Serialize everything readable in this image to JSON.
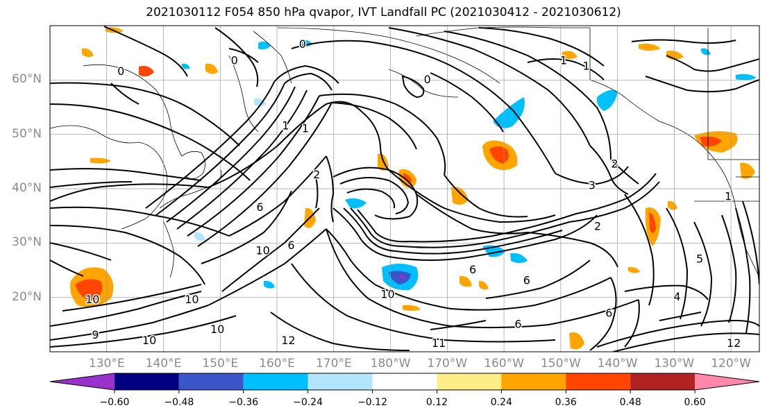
{
  "title": "2021030112 F054 850 hPa qvapor, IVT Landfall PC (2021030412 - 2021030612)",
  "map": {
    "extent": {
      "lon_min": 120,
      "lon_max": 245,
      "lat_min": 10,
      "lat_max": 70
    },
    "lat_labels": [
      {
        "lat": 60,
        "text": "60°N"
      },
      {
        "lat": 50,
        "text": "50°N"
      },
      {
        "lat": 40,
        "text": "40°N"
      },
      {
        "lat": 30,
        "text": "30°N"
      },
      {
        "lat": 20,
        "text": "20°N"
      }
    ],
    "lon_labels": [
      {
        "lon": 130,
        "text": "130°E"
      },
      {
        "lon": 140,
        "text": "140°E"
      },
      {
        "lon": 150,
        "text": "150°E"
      },
      {
        "lon": 160,
        "text": "160°E"
      },
      {
        "lon": 170,
        "text": "170°E"
      },
      {
        "lon": 180,
        "text": "180°W"
      },
      {
        "lon": 190,
        "text": "170°W"
      },
      {
        "lon": 200,
        "text": "160°W"
      },
      {
        "lon": 210,
        "text": "150°W"
      },
      {
        "lon": 220,
        "text": "140°W"
      },
      {
        "lon": 230,
        "text": "130°W"
      },
      {
        "lon": 240,
        "text": "120°W"
      }
    ],
    "contour_labels": [
      {
        "text": "0",
        "lon": 132.5,
        "lat": 61.5
      },
      {
        "text": "0",
        "lon": 152.5,
        "lat": 63.5
      },
      {
        "text": "0",
        "lon": 164.5,
        "lat": 66.5
      },
      {
        "text": "1",
        "lon": 210.5,
        "lat": 63.5
      },
      {
        "text": "1",
        "lon": 214.5,
        "lat": 62.5
      },
      {
        "text": "0",
        "lon": 186.5,
        "lat": 60.0
      },
      {
        "text": "1",
        "lon": 161.5,
        "lat": 51.5
      },
      {
        "text": "1",
        "lon": 165.0,
        "lat": 51.0
      },
      {
        "text": "2",
        "lon": 167.0,
        "lat": 42.5
      },
      {
        "text": "2",
        "lon": 219.5,
        "lat": 44.5
      },
      {
        "text": "3",
        "lon": 215.5,
        "lat": 40.5
      },
      {
        "text": "6",
        "lon": 157.0,
        "lat": 36.5
      },
      {
        "text": "10",
        "lon": 157.5,
        "lat": 28.5
      },
      {
        "text": "6",
        "lon": 162.5,
        "lat": 29.5
      },
      {
        "text": "10",
        "lon": 179.5,
        "lat": 20.5
      },
      {
        "text": "6",
        "lon": 194.5,
        "lat": 25.0
      },
      {
        "text": "6",
        "lon": 204.0,
        "lat": 23.0
      },
      {
        "text": "6",
        "lon": 202.5,
        "lat": 15.0
      },
      {
        "text": "10",
        "lon": 127.5,
        "lat": 19.5
      },
      {
        "text": "10",
        "lon": 145.0,
        "lat": 19.5
      },
      {
        "text": "10",
        "lon": 149.5,
        "lat": 14.0
      },
      {
        "text": "12",
        "lon": 162.0,
        "lat": 12.0
      },
      {
        "text": "11",
        "lon": 188.5,
        "lat": 11.5
      },
      {
        "text": "9",
        "lon": 128.0,
        "lat": 13.0
      },
      {
        "text": "10",
        "lon": 137.5,
        "lat": 12.0
      },
      {
        "text": "4",
        "lon": 230.5,
        "lat": 20.0
      },
      {
        "text": "5",
        "lon": 234.5,
        "lat": 27.0
      },
      {
        "text": "6",
        "lon": 218.5,
        "lat": 17.0
      },
      {
        "text": "12",
        "lon": 240.5,
        "lat": 11.5
      },
      {
        "text": "1",
        "lon": 239.5,
        "lat": 38.5
      },
      {
        "text": "2",
        "lon": 216.5,
        "lat": 33.0
      }
    ]
  },
  "colorbar": {
    "colors": [
      "#9932cc",
      "#000080",
      "#3a55c8",
      "#00bfff",
      "#b3e5fc",
      "#ffffff",
      "#ffee88",
      "#ffa500",
      "#ff4500",
      "#b22222",
      "#ff88aa"
    ],
    "bounds": [
      -0.72,
      -0.6,
      -0.48,
      -0.36,
      -0.24,
      -0.12,
      0.12,
      0.24,
      0.36,
      0.48,
      0.6,
      0.72
    ],
    "tick_values": [
      -0.6,
      -0.48,
      -0.36,
      -0.24,
      -0.12,
      0.12,
      0.24,
      0.36,
      0.48,
      0.6
    ],
    "tick_labels": [
      "−0.60",
      "−0.48",
      "−0.36",
      "−0.24",
      "−0.12",
      "0.12",
      "0.24",
      "0.36",
      "0.48",
      "0.60"
    ]
  }
}
